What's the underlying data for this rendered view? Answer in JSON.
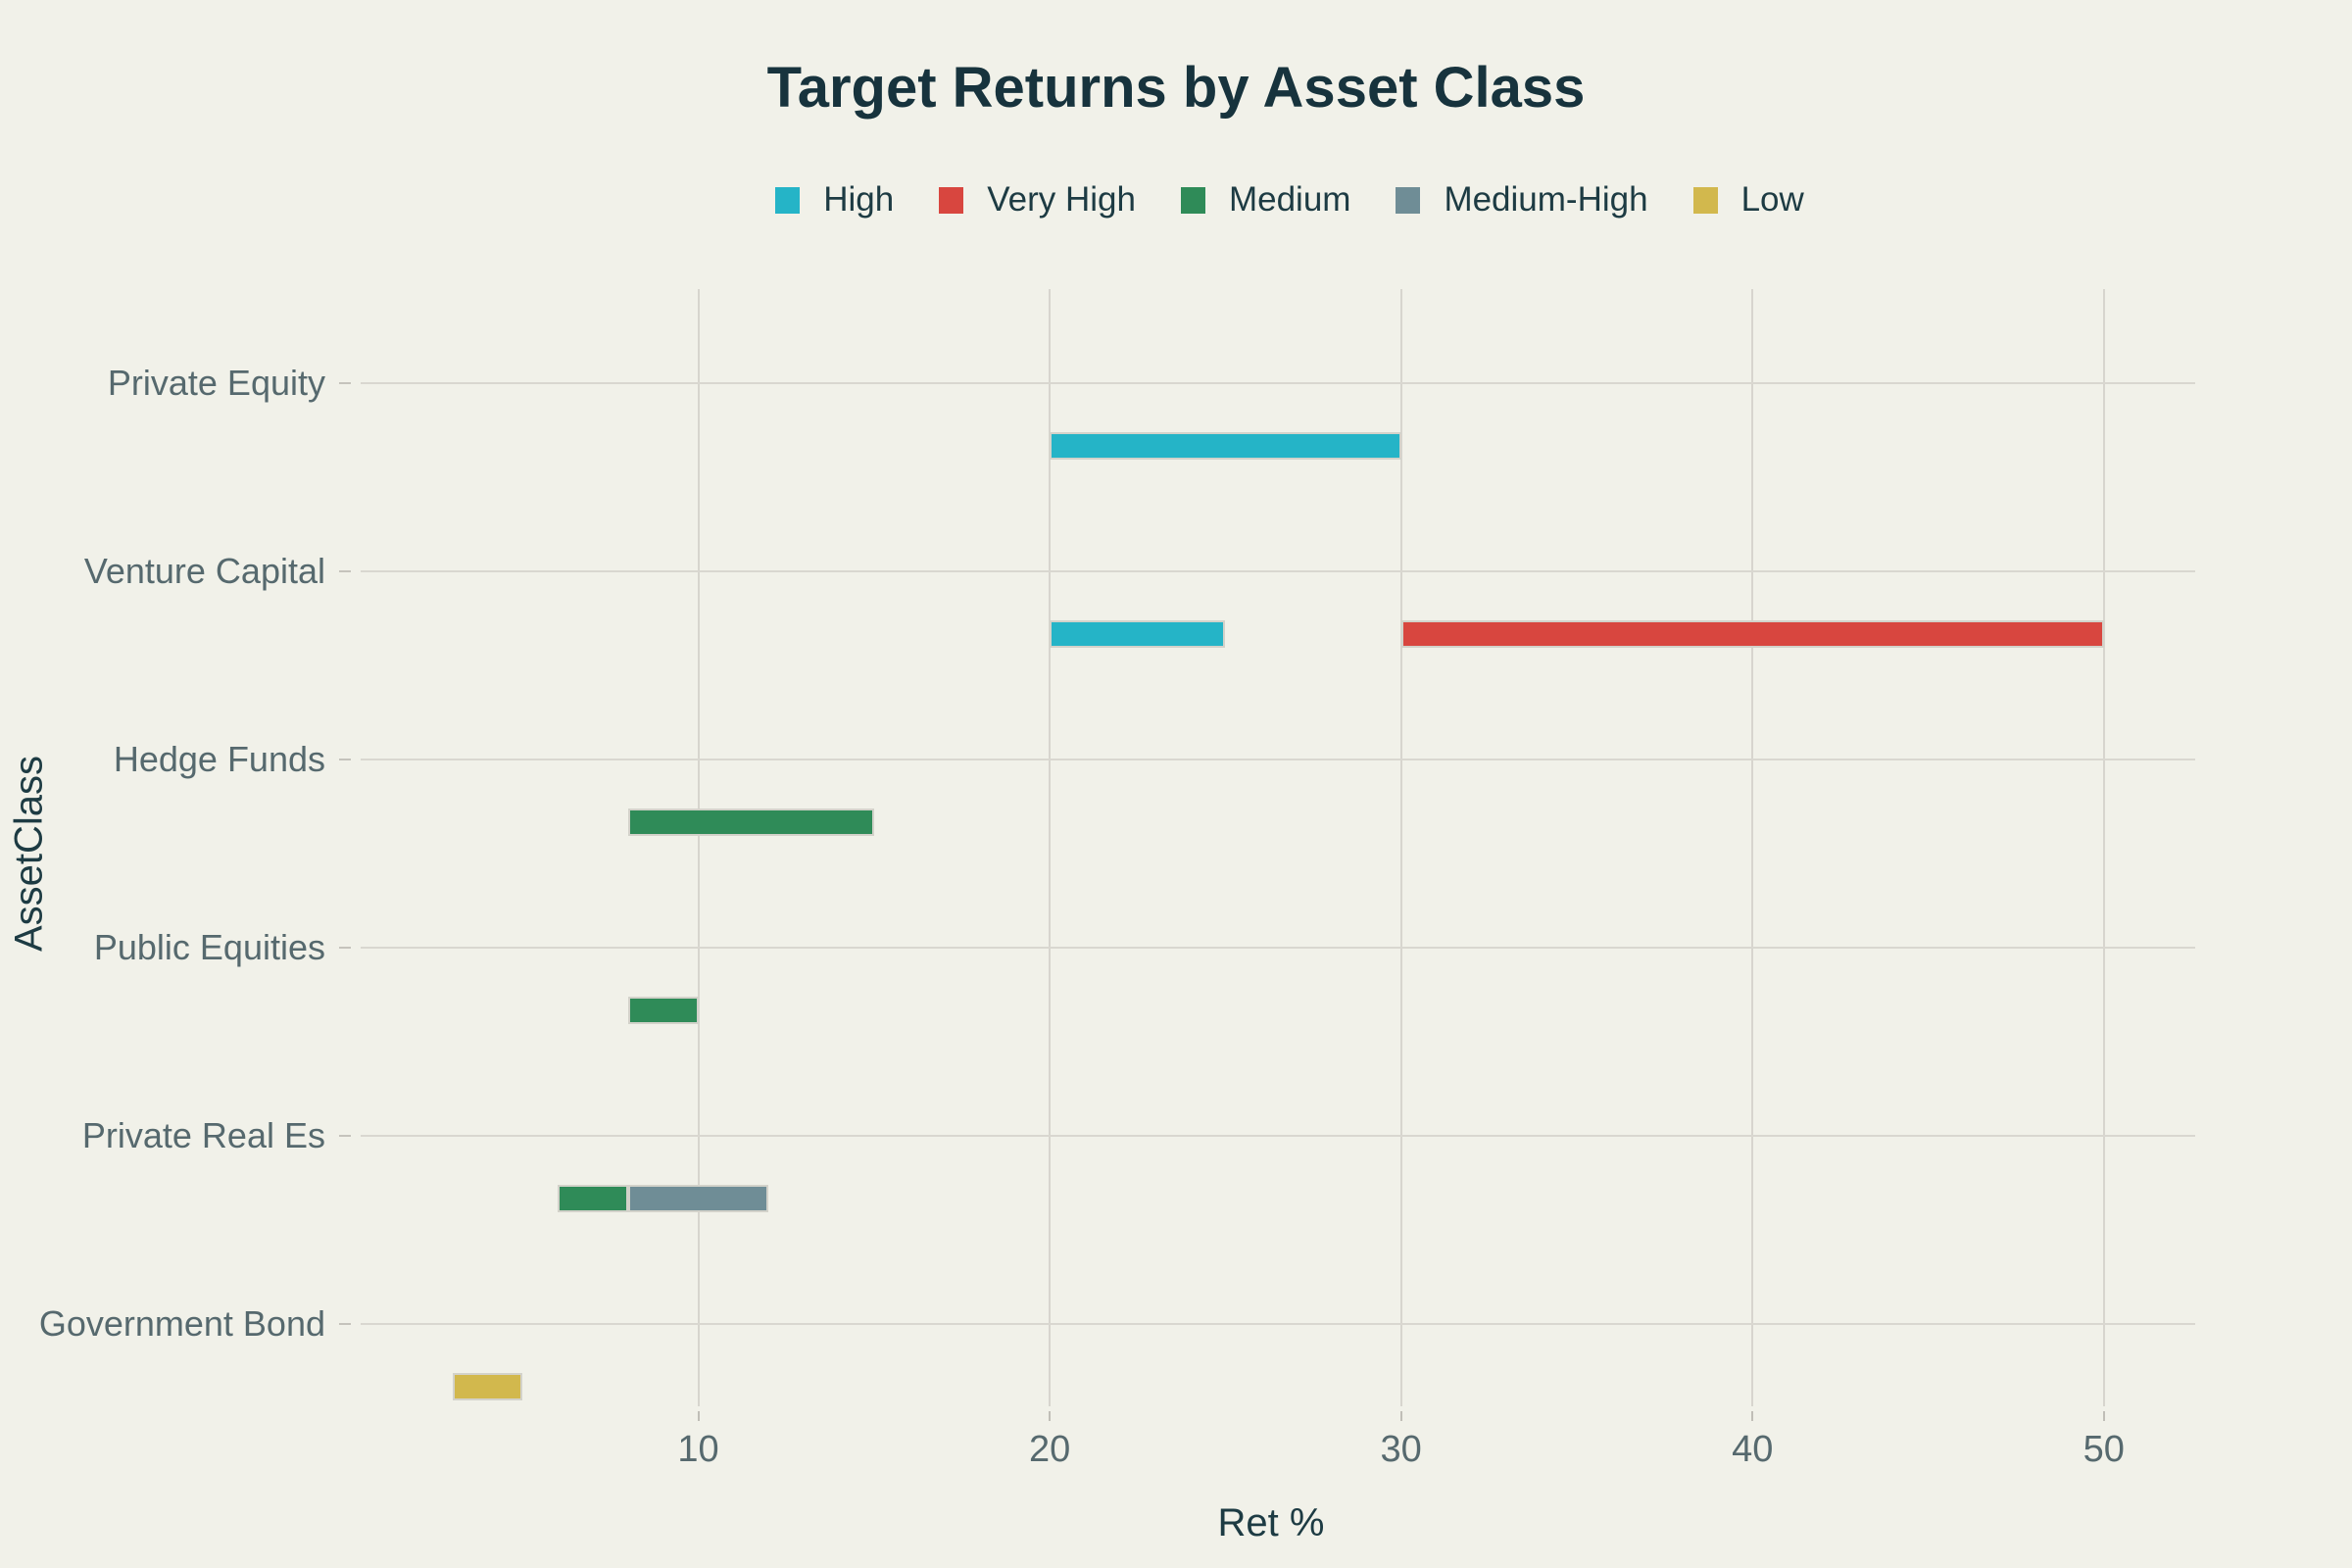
{
  "title": "Target Returns by Asset Class",
  "colors": {
    "background": "#f1f1e9",
    "gridline": "#d7d5ce",
    "tick_mark": "#c0beb7",
    "axis_label_muted": "#56696e",
    "text_dark": "#1d3b43",
    "title_text": "#17333d"
  },
  "chart_data": {
    "type": "bar",
    "subtype": "horizontal-range",
    "title": "Target Returns by Asset Class",
    "xlabel": "Ret %",
    "ylabel": "AssetClass",
    "xlim": [
      0,
      52.6
    ],
    "xticks": [
      10,
      20,
      30,
      40,
      50
    ],
    "grid": true,
    "legend_position": "top-center",
    "categories": [
      "Private Equity",
      "Venture Capital",
      "Hedge Funds",
      "Public Equities",
      "Private Real Es",
      "Government Bond"
    ],
    "series": [
      {
        "name": "High",
        "color": "#25b4c7",
        "ranges": [
          {
            "category": "Private Equity",
            "start": 20,
            "end": 30
          },
          {
            "category": "Venture Capital",
            "start": 20,
            "end": 25
          }
        ]
      },
      {
        "name": "Very High",
        "color": "#d8463f",
        "ranges": [
          {
            "category": "Venture Capital",
            "start": 30,
            "end": 50
          }
        ]
      },
      {
        "name": "Medium",
        "color": "#2f8b58",
        "ranges": [
          {
            "category": "Hedge Funds",
            "start": 8,
            "end": 15
          },
          {
            "category": "Public Equities",
            "start": 8,
            "end": 10
          },
          {
            "category": "Private Real Es",
            "start": 6,
            "end": 8
          }
        ]
      },
      {
        "name": "Medium-High",
        "color": "#6f8d96",
        "pattern": "cyan-dots",
        "ranges": [
          {
            "category": "Private Real Es",
            "start": 8,
            "end": 12
          }
        ]
      },
      {
        "name": "Low",
        "color": "#d2b84d",
        "ranges": [
          {
            "category": "Government Bond",
            "start": 3,
            "end": 5
          }
        ]
      }
    ]
  }
}
